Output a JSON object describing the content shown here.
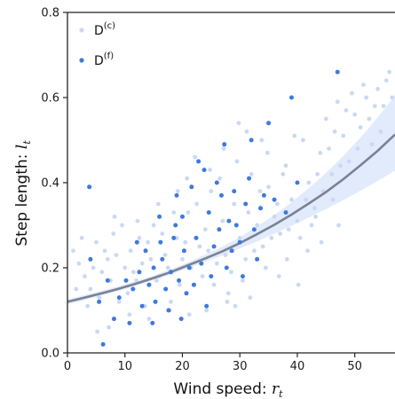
{
  "chart_data": {
    "type": "scatter",
    "title": "",
    "xlabel": "Wind speed: ",
    "xlabel_math": "r",
    "xlabel_sub": "t",
    "ylabel": "Step length: ",
    "ylabel_math": "l",
    "ylabel_sub": "t",
    "xlim": [
      0,
      57
    ],
    "ylim": [
      0,
      0.8
    ],
    "x_ticks": [
      0,
      10,
      20,
      30,
      40,
      50
    ],
    "y_ticks": [
      0.0,
      0.2,
      0.4,
      0.6,
      0.8
    ],
    "x_tick_labels": [
      "0",
      "10",
      "20",
      "30",
      "40",
      "50"
    ],
    "y_tick_labels": [
      "0.0",
      "0.2",
      "0.4",
      "0.6",
      "0.8"
    ],
    "legend_position": "top-left",
    "grid": false,
    "colors": {
      "coarse": "#c9d9f4",
      "fine": "#3f79dd",
      "band": "#dde8fa",
      "fit": "#7a8395",
      "axis": "#222222"
    },
    "series": [
      {
        "name": "D",
        "name_sup": "(c)",
        "kind": "points",
        "points": [
          [
            1.0,
            0.24
          ],
          [
            2.0,
            0.21
          ],
          [
            3.0,
            0.18
          ],
          [
            4.0,
            0.15
          ],
          [
            5.0,
            0.26
          ],
          [
            6.0,
            0.19
          ],
          [
            7.0,
            0.22
          ],
          [
            8.0,
            0.28
          ],
          [
            9.0,
            0.12
          ],
          [
            10.0,
            0.2
          ],
          [
            11.0,
            0.24
          ],
          [
            12.0,
            0.17
          ],
          [
            13.0,
            0.21
          ],
          [
            14.0,
            0.26
          ],
          [
            15.0,
            0.3
          ],
          [
            16.0,
            0.18
          ],
          [
            17.0,
            0.23
          ],
          [
            18.0,
            0.12
          ],
          [
            19.0,
            0.27
          ],
          [
            20.0,
            0.22
          ],
          [
            21.0,
            0.33
          ],
          [
            22.0,
            0.16
          ],
          [
            23.0,
            0.25
          ],
          [
            24.0,
            0.29
          ],
          [
            25.0,
            0.38
          ],
          [
            26.0,
            0.21
          ],
          [
            27.0,
            0.31
          ],
          [
            28.0,
            0.14
          ],
          [
            29.0,
            0.35
          ],
          [
            30.0,
            0.27
          ],
          [
            31.0,
            0.22
          ],
          [
            32.0,
            0.42
          ],
          [
            33.0,
            0.3
          ],
          [
            34.0,
            0.25
          ],
          [
            35.0,
            0.39
          ],
          [
            36.0,
            0.32
          ],
          [
            37.0,
            0.28
          ],
          [
            38.0,
            0.44
          ],
          [
            39.0,
            0.36
          ],
          [
            40.0,
            0.31
          ],
          [
            41.0,
            0.5
          ],
          [
            42.0,
            0.4
          ],
          [
            43.0,
            0.34
          ],
          [
            44.0,
            0.47
          ],
          [
            45.0,
            0.55
          ],
          [
            46.0,
            0.42
          ],
          [
            47.0,
            0.59
          ],
          [
            48.0,
            0.51
          ],
          [
            49.0,
            0.45
          ],
          [
            50.0,
            0.56
          ],
          [
            51.0,
            0.53
          ],
          [
            52.0,
            0.6
          ],
          [
            53.0,
            0.49
          ],
          [
            54.0,
            0.62
          ],
          [
            55.0,
            0.58
          ],
          [
            56.0,
            0.66
          ],
          [
            1.5,
            0.15
          ],
          [
            2.5,
            0.27
          ],
          [
            3.5,
            0.11
          ],
          [
            4.5,
            0.2
          ],
          [
            5.5,
            0.13
          ],
          [
            6.5,
            0.24
          ],
          [
            7.5,
            0.17
          ],
          [
            8.5,
            0.23
          ],
          [
            9.5,
            0.3
          ],
          [
            10.5,
            0.14
          ],
          [
            11.5,
            0.19
          ],
          [
            12.5,
            0.27
          ],
          [
            13.5,
            0.11
          ],
          [
            14.5,
            0.22
          ],
          [
            15.5,
            0.17
          ],
          [
            16.5,
            0.28
          ],
          [
            17.5,
            0.2
          ],
          [
            18.5,
            0.33
          ],
          [
            19.5,
            0.16
          ],
          [
            20.5,
            0.26
          ],
          [
            21.5,
            0.2
          ],
          [
            22.5,
            0.35
          ],
          [
            23.5,
            0.18
          ],
          [
            24.5,
            0.24
          ],
          [
            25.5,
            0.16
          ],
          [
            26.5,
            0.41
          ],
          [
            27.5,
            0.23
          ],
          [
            28.5,
            0.19
          ],
          [
            29.5,
            0.45
          ],
          [
            30.5,
            0.17
          ],
          [
            31.5,
            0.33
          ],
          [
            32.5,
            0.24
          ],
          [
            33.5,
            0.38
          ],
          [
            34.5,
            0.2
          ],
          [
            35.5,
            0.27
          ],
          [
            36.5,
            0.35
          ],
          [
            37.5,
            0.42
          ],
          [
            38.5,
            0.29
          ],
          [
            39.5,
            0.51
          ],
          [
            40.5,
            0.27
          ],
          [
            41.5,
            0.36
          ],
          [
            42.5,
            0.3
          ],
          [
            43.5,
            0.42
          ],
          [
            44.5,
            0.38
          ],
          [
            45.5,
            0.48
          ],
          [
            46.5,
            0.52
          ],
          [
            47.5,
            0.44
          ],
          [
            48.5,
            0.57
          ],
          [
            49.5,
            0.61
          ],
          [
            50.5,
            0.48
          ],
          [
            51.5,
            0.63
          ],
          [
            52.5,
            0.55
          ],
          [
            53.5,
            0.58
          ],
          [
            54.5,
            0.52
          ],
          [
            55.5,
            0.64
          ],
          [
            56.5,
            0.6
          ],
          [
            8.2,
            0.32
          ],
          [
            12.2,
            0.31
          ],
          [
            15.8,
            0.35
          ],
          [
            19.2,
            0.38
          ],
          [
            20.8,
            0.41
          ],
          [
            22.2,
            0.46
          ],
          [
            24.8,
            0.43
          ],
          [
            27.2,
            0.48
          ],
          [
            29.8,
            0.54
          ],
          [
            31.2,
            0.52
          ],
          [
            33.8,
            0.5
          ],
          [
            34.8,
            0.47
          ],
          [
            29.2,
            0.11
          ],
          [
            31.8,
            0.13
          ],
          [
            27.8,
            0.12
          ],
          [
            24.2,
            0.1
          ],
          [
            21.2,
            0.09
          ],
          [
            17.8,
            0.1
          ],
          [
            14.2,
            0.08
          ],
          [
            10.8,
            0.09
          ],
          [
            7.2,
            0.06
          ],
          [
            5.2,
            0.05
          ],
          [
            36.8,
            0.18
          ],
          [
            38.2,
            0.22
          ],
          [
            40.2,
            0.16
          ],
          [
            41.8,
            0.24
          ],
          [
            43.2,
            0.32
          ],
          [
            44.2,
            0.26
          ],
          [
            46.2,
            0.36
          ],
          [
            47.2,
            0.3
          ]
        ]
      },
      {
        "name": "D",
        "name_sup": "(f)",
        "kind": "points",
        "points": [
          [
            3.8,
            0.39
          ],
          [
            4.0,
            0.22
          ],
          [
            5.5,
            0.12
          ],
          [
            6.2,
            0.02
          ],
          [
            7.0,
            0.17
          ],
          [
            8.1,
            0.08
          ],
          [
            9.0,
            0.13
          ],
          [
            10.2,
            0.17
          ],
          [
            10.8,
            0.07
          ],
          [
            11.4,
            0.15
          ],
          [
            12.1,
            0.26
          ],
          [
            12.5,
            0.19
          ],
          [
            13.0,
            0.11
          ],
          [
            13.6,
            0.24
          ],
          [
            14.2,
            0.16
          ],
          [
            14.8,
            0.07
          ],
          [
            15.3,
            0.12
          ],
          [
            16.0,
            0.32
          ],
          [
            16.5,
            0.22
          ],
          [
            17.1,
            0.15
          ],
          [
            17.6,
            0.1
          ],
          [
            18.0,
            0.19
          ],
          [
            18.5,
            0.27
          ],
          [
            19.0,
            0.37
          ],
          [
            19.4,
            0.17
          ],
          [
            19.8,
            0.08
          ],
          [
            20.3,
            0.24
          ],
          [
            20.7,
            0.14
          ],
          [
            21.2,
            0.2
          ],
          [
            21.6,
            0.39
          ],
          [
            22.0,
            0.16
          ],
          [
            22.4,
            0.27
          ],
          [
            22.8,
            0.45
          ],
          [
            23.3,
            0.21
          ],
          [
            23.8,
            0.43
          ],
          [
            24.2,
            0.11
          ],
          [
            24.6,
            0.33
          ],
          [
            25.0,
            0.18
          ],
          [
            25.5,
            0.25
          ],
          [
            26.0,
            0.4
          ],
          [
            26.4,
            0.29
          ],
          [
            26.8,
            0.37
          ],
          [
            27.3,
            0.49
          ],
          [
            27.7,
            0.2
          ],
          [
            28.1,
            0.31
          ],
          [
            28.6,
            0.24
          ],
          [
            29.0,
            0.38
          ],
          [
            29.4,
            0.3
          ],
          [
            30.0,
            0.26
          ],
          [
            30.5,
            0.18
          ],
          [
            31.0,
            0.35
          ],
          [
            31.6,
            0.41
          ],
          [
            32.0,
            0.5
          ],
          [
            32.5,
            0.29
          ],
          [
            33.0,
            0.22
          ],
          [
            33.6,
            0.34
          ],
          [
            34.2,
            0.37
          ],
          [
            35.0,
            0.54
          ],
          [
            36.0,
            0.36
          ],
          [
            38.0,
            0.33
          ],
          [
            39.0,
            0.6
          ],
          [
            40.0,
            0.4
          ],
          [
            47.0,
            0.66
          ],
          [
            15.0,
            0.2
          ],
          [
            16.2,
            0.26
          ],
          [
            18.8,
            0.3
          ],
          [
            20.0,
            0.32
          ]
        ]
      },
      {
        "name": "",
        "kind": "fit",
        "x": [
          0,
          3,
          6,
          9,
          12,
          15,
          18,
          21,
          24,
          27,
          30,
          33,
          36,
          39,
          42,
          45,
          48,
          51,
          54,
          57
        ],
        "y": [
          0.12,
          0.13,
          0.14,
          0.151,
          0.163,
          0.176,
          0.19,
          0.206,
          0.222,
          0.239,
          0.258,
          0.279,
          0.301,
          0.325,
          0.351,
          0.378,
          0.408,
          0.441,
          0.475,
          0.513
        ],
        "lower": [
          0.114,
          0.124,
          0.135,
          0.146,
          0.158,
          0.171,
          0.184,
          0.199,
          0.214,
          0.229,
          0.245,
          0.262,
          0.28,
          0.299,
          0.318,
          0.338,
          0.359,
          0.381,
          0.404,
          0.428
        ],
        "upper": [
          0.126,
          0.136,
          0.146,
          0.157,
          0.169,
          0.182,
          0.197,
          0.213,
          0.231,
          0.25,
          0.272,
          0.297,
          0.324,
          0.354,
          0.387,
          0.423,
          0.463,
          0.506,
          0.553,
          0.605
        ]
      }
    ]
  }
}
